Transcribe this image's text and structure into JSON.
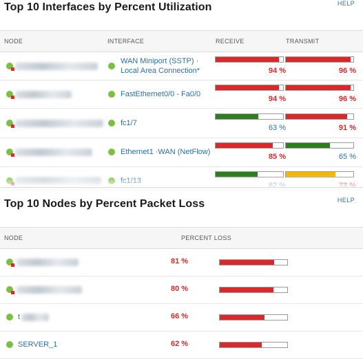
{
  "interfaces_panel": {
    "title": "Top 10 Interfaces by Percent Utilization",
    "help": "HELP",
    "columns": {
      "node": "NODE",
      "interface": "INTERFACE",
      "receive": "RECEIVE",
      "transmit": "TRANSMIT"
    },
    "rows": [
      {
        "interface": "WAN Miniport (SSTP) · Local Area Connection*",
        "receive": 94,
        "transmit": 96,
        "receive_label": "94 %",
        "transmit_label": "96 %",
        "receive_status": "critical",
        "transmit_status": "critical"
      },
      {
        "interface": "FastEthernet0/0 - Fa0/0",
        "receive": 94,
        "transmit": 96,
        "receive_label": "94 %",
        "transmit_label": "96 %",
        "receive_status": "critical",
        "transmit_status": "critical"
      },
      {
        "interface": "fc1/7",
        "receive": 63,
        "transmit": 91,
        "receive_label": "63 %",
        "transmit_label": "91 %",
        "receive_status": "ok",
        "transmit_status": "critical"
      },
      {
        "interface": "Ethernet1 ·WAN (NetFlow)",
        "receive": 85,
        "transmit": 65,
        "receive_label": "85 %",
        "transmit_label": "65 %",
        "receive_status": "critical",
        "transmit_status": "ok"
      },
      {
        "interface": "fc1/13",
        "receive": 62,
        "transmit": 73,
        "receive_label": "62 %",
        "transmit_label": "73 %",
        "receive_status": "ok",
        "transmit_status": "warning"
      }
    ]
  },
  "packet_loss_panel": {
    "title": "Top 10 Nodes by Percent Packet Loss",
    "help": "HELP",
    "columns": {
      "node": "NODE",
      "percent_loss": "PERCENT LOSS"
    },
    "rows": [
      {
        "node": "",
        "loss": 81,
        "loss_label": "81 %"
      },
      {
        "node": "",
        "loss": 80,
        "loss_label": "80 %"
      },
      {
        "node": "t",
        "loss": 66,
        "loss_label": "66 %"
      },
      {
        "node": "SERVER_1",
        "loss": 62,
        "loss_label": "62 %"
      }
    ]
  },
  "colors": {
    "critical": "#d9292a",
    "warning": "#f5b800",
    "ok": "#2e7d1f",
    "node_up": "#7ac143",
    "link": "#2f6fa3"
  },
  "icons": {
    "status": "node-status-icon",
    "resize": "resize-grip-icon"
  }
}
